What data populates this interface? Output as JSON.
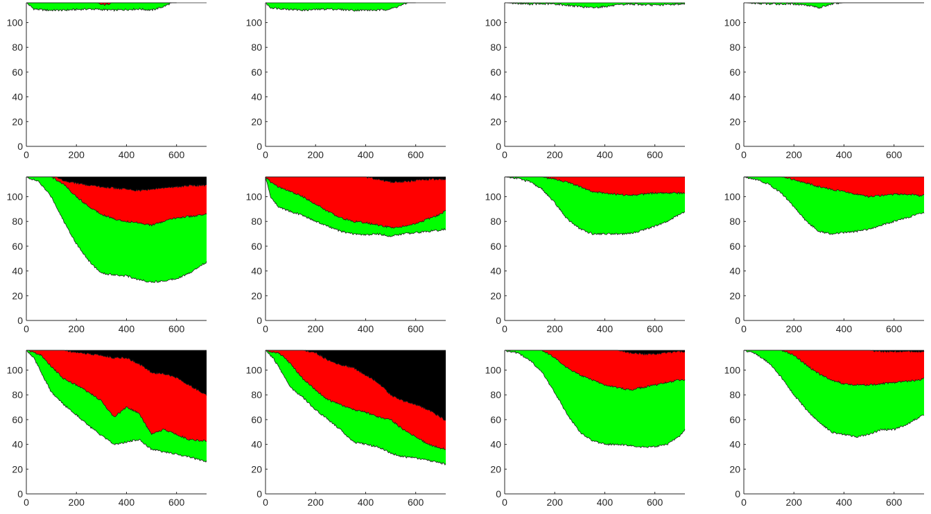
{
  "chart_data": [
    {
      "id": "r1c1",
      "type": "area",
      "xlim": [
        0,
        720
      ],
      "ylim": [
        0,
        116
      ],
      "x_ticks": [
        0,
        200,
        400,
        600
      ],
      "y_ticks": [
        0,
        20,
        40,
        60,
        80,
        100
      ],
      "series": [
        {
          "color": "#00ff00",
          "x": [
            0,
            30,
            80,
            150,
            250,
            350,
            450,
            500,
            550,
            580,
            600
          ],
          "lower": [
            116,
            111,
            110,
            110,
            111,
            110,
            111,
            110,
            113,
            116,
            116
          ]
        },
        {
          "color": "#ff0000",
          "x": [
            0,
            200,
            280,
            300,
            320,
            340,
            400,
            600
          ],
          "lower": [
            116,
            116,
            116,
            114.5,
            114.5,
            116,
            116,
            116
          ]
        }
      ]
    },
    {
      "id": "r1c2",
      "type": "area",
      "xlim": [
        0,
        720
      ],
      "ylim": [
        0,
        116
      ],
      "x_ticks": [
        0,
        200,
        400,
        600
      ],
      "y_ticks": [
        0,
        20,
        40,
        60,
        80,
        100
      ],
      "series": [
        {
          "color": "#00ff00",
          "x": [
            0,
            20,
            80,
            150,
            250,
            350,
            450,
            500,
            530,
            570,
            600
          ],
          "lower": [
            116,
            112,
            111,
            110,
            111,
            110,
            110,
            111,
            113,
            116,
            116
          ]
        }
      ]
    },
    {
      "id": "r1c3",
      "type": "area",
      "xlim": [
        0,
        720
      ],
      "ylim": [
        0,
        116
      ],
      "x_ticks": [
        0,
        200,
        400,
        600
      ],
      "y_ticks": [
        0,
        20,
        40,
        60,
        80,
        100
      ],
      "series": [
        {
          "color": "#00ff00",
          "x": [
            0,
            100,
            200,
            250,
            300,
            350,
            400,
            450,
            500,
            600,
            700,
            720
          ],
          "lower": [
            116,
            115,
            115,
            114,
            113,
            112,
            113,
            114,
            115,
            114,
            115,
            115
          ]
        }
      ]
    },
    {
      "id": "r1c4",
      "type": "area",
      "xlim": [
        0,
        720
      ],
      "ylim": [
        0,
        116
      ],
      "x_ticks": [
        0,
        200,
        400,
        600
      ],
      "y_ticks": [
        0,
        20,
        40,
        60,
        80,
        100
      ],
      "series": [
        {
          "color": "#00ff00",
          "x": [
            0,
            100,
            200,
            260,
            300,
            320,
            350,
            400,
            500,
            600,
            720
          ],
          "lower": [
            116,
            115,
            115,
            114,
            112,
            113,
            115,
            116,
            116,
            116,
            116
          ]
        }
      ]
    },
    {
      "id": "r2c1",
      "type": "area",
      "xlim": [
        0,
        720
      ],
      "ylim": [
        0,
        116
      ],
      "x_ticks": [
        0,
        200,
        400,
        600
      ],
      "y_ticks": [
        0,
        20,
        40,
        60,
        80,
        100
      ],
      "series": [
        {
          "color": "#00ff00",
          "x": [
            0,
            50,
            100,
            150,
            200,
            250,
            300,
            350,
            400,
            450,
            500,
            550,
            600,
            650,
            700,
            720
          ],
          "lower": [
            116,
            112,
            100,
            80,
            62,
            48,
            38,
            37,
            36,
            33,
            31,
            32,
            34,
            38,
            45,
            47
          ]
        },
        {
          "color": "#ff0000",
          "x": [
            0,
            100,
            150,
            200,
            250,
            300,
            350,
            400,
            450,
            500,
            550,
            600,
            650,
            700,
            720
          ],
          "lower": [
            116,
            116,
            110,
            100,
            92,
            86,
            82,
            80,
            79,
            77,
            80,
            83,
            84,
            85,
            86
          ]
        },
        {
          "color": "#000000",
          "x": [
            0,
            120,
            150,
            200,
            250,
            300,
            350,
            400,
            450,
            500,
            550,
            600,
            650,
            700,
            720
          ],
          "lower": [
            116,
            116,
            113,
            111,
            109,
            108,
            107,
            106,
            105,
            106,
            107,
            108,
            109,
            109,
            109
          ]
        }
      ]
    },
    {
      "id": "r2c2",
      "type": "area",
      "xlim": [
        0,
        720
      ],
      "ylim": [
        0,
        116
      ],
      "x_ticks": [
        0,
        200,
        400,
        600
      ],
      "y_ticks": [
        0,
        20,
        40,
        60,
        80,
        100
      ],
      "series": [
        {
          "color": "#00ff00",
          "x": [
            0,
            20,
            50,
            100,
            150,
            200,
            250,
            300,
            350,
            400,
            450,
            500,
            550,
            600,
            650,
            700,
            720
          ],
          "lower": [
            116,
            100,
            92,
            88,
            85,
            80,
            76,
            72,
            70,
            69,
            70,
            68,
            70,
            71,
            72,
            73,
            74
          ]
        },
        {
          "color": "#ff0000",
          "x": [
            0,
            20,
            50,
            100,
            150,
            200,
            250,
            300,
            350,
            400,
            450,
            500,
            550,
            600,
            650,
            700,
            720
          ],
          "lower": [
            116,
            112,
            108,
            104,
            100,
            94,
            88,
            83,
            80,
            79,
            77,
            75,
            76,
            78,
            82,
            86,
            89
          ]
        },
        {
          "color": "#000000",
          "x": [
            0,
            400,
            450,
            500,
            550,
            600,
            650,
            700,
            720
          ],
          "lower": [
            116,
            116,
            114,
            112,
            112,
            113,
            114,
            114,
            114
          ]
        }
      ]
    },
    {
      "id": "r2c3",
      "type": "area",
      "xlim": [
        0,
        720
      ],
      "ylim": [
        0,
        116
      ],
      "x_ticks": [
        0,
        200,
        400,
        600
      ],
      "y_ticks": [
        0,
        20,
        40,
        60,
        80,
        100
      ],
      "series": [
        {
          "color": "#00ff00",
          "x": [
            0,
            50,
            100,
            150,
            200,
            250,
            300,
            350,
            400,
            450,
            500,
            550,
            600,
            650,
            700,
            720
          ],
          "lower": [
            116,
            115,
            112,
            106,
            95,
            82,
            74,
            70,
            70,
            70,
            70,
            73,
            76,
            80,
            86,
            88
          ]
        },
        {
          "color": "#ff0000",
          "x": [
            0,
            150,
            200,
            250,
            300,
            350,
            400,
            450,
            500,
            550,
            600,
            650,
            700,
            720
          ],
          "lower": [
            116,
            116,
            114,
            112,
            108,
            104,
            103,
            102,
            101,
            102,
            103,
            103,
            103,
            103
          ]
        }
      ]
    },
    {
      "id": "r2c4",
      "type": "area",
      "xlim": [
        0,
        720
      ],
      "ylim": [
        0,
        116
      ],
      "x_ticks": [
        0,
        200,
        400,
        600
      ],
      "y_ticks": [
        0,
        20,
        40,
        60,
        80,
        100
      ],
      "series": [
        {
          "color": "#00ff00",
          "x": [
            0,
            50,
            100,
            150,
            200,
            250,
            300,
            350,
            400,
            450,
            500,
            550,
            600,
            650,
            700,
            720
          ],
          "lower": [
            116,
            114,
            110,
            103,
            92,
            80,
            72,
            70,
            71,
            72,
            74,
            77,
            80,
            83,
            86,
            87
          ]
        },
        {
          "color": "#ff0000",
          "x": [
            0,
            150,
            200,
            250,
            300,
            350,
            400,
            450,
            500,
            550,
            600,
            650,
            700,
            720
          ],
          "lower": [
            116,
            116,
            114,
            111,
            108,
            106,
            104,
            102,
            100,
            101,
            102,
            102,
            101,
            101
          ]
        }
      ]
    },
    {
      "id": "r3c1",
      "type": "area",
      "xlim": [
        0,
        720
      ],
      "ylim": [
        0,
        116
      ],
      "x_ticks": [
        0,
        200,
        400,
        600
      ],
      "y_ticks": [
        0,
        20,
        40,
        60,
        80,
        100
      ],
      "series": [
        {
          "color": "#00ff00",
          "x": [
            0,
            30,
            60,
            100,
            150,
            200,
            250,
            300,
            350,
            400,
            450,
            500,
            550,
            600,
            650,
            700,
            720
          ],
          "lower": [
            116,
            110,
            98,
            82,
            72,
            64,
            55,
            47,
            40,
            42,
            44,
            36,
            34,
            32,
            30,
            27,
            26
          ]
        },
        {
          "color": "#ff0000",
          "x": [
            0,
            60,
            100,
            150,
            200,
            250,
            300,
            350,
            400,
            450,
            500,
            550,
            600,
            650,
            700,
            720
          ],
          "lower": [
            116,
            112,
            103,
            93,
            88,
            82,
            75,
            62,
            70,
            65,
            48,
            52,
            48,
            44,
            43,
            43
          ]
        },
        {
          "color": "#000000",
          "x": [
            0,
            150,
            200,
            250,
            300,
            350,
            400,
            450,
            500,
            550,
            600,
            650,
            700,
            720
          ],
          "lower": [
            116,
            116,
            114,
            113,
            112,
            110,
            110,
            105,
            98,
            97,
            94,
            88,
            82,
            80
          ]
        }
      ]
    },
    {
      "id": "r3c2",
      "type": "area",
      "xlim": [
        0,
        720
      ],
      "ylim": [
        0,
        116
      ],
      "x_ticks": [
        0,
        200,
        400,
        600
      ],
      "y_ticks": [
        0,
        20,
        40,
        60,
        80,
        100
      ],
      "series": [
        {
          "color": "#00ff00",
          "x": [
            0,
            30,
            60,
            100,
            150,
            200,
            250,
            300,
            350,
            400,
            450,
            500,
            550,
            600,
            650,
            700,
            720
          ],
          "lower": [
            116,
            110,
            100,
            86,
            78,
            68,
            60,
            52,
            42,
            40,
            38,
            33,
            30,
            29,
            27,
            25,
            24
          ]
        },
        {
          "color": "#ff0000",
          "x": [
            0,
            60,
            100,
            150,
            200,
            250,
            300,
            350,
            400,
            450,
            500,
            550,
            600,
            650,
            700,
            720
          ],
          "lower": [
            116,
            113,
            105,
            93,
            84,
            76,
            72,
            68,
            66,
            62,
            60,
            52,
            46,
            40,
            37,
            36
          ]
        },
        {
          "color": "#000000",
          "x": [
            0,
            150,
            200,
            250,
            300,
            350,
            400,
            450,
            500,
            550,
            600,
            650,
            700,
            720
          ],
          "lower": [
            116,
            116,
            114,
            108,
            104,
            102,
            96,
            90,
            80,
            75,
            72,
            68,
            62,
            59
          ]
        }
      ]
    },
    {
      "id": "r3c3",
      "type": "area",
      "xlim": [
        0,
        720
      ],
      "ylim": [
        0,
        116
      ],
      "x_ticks": [
        0,
        200,
        400,
        600
      ],
      "y_ticks": [
        0,
        20,
        40,
        60,
        80,
        100
      ],
      "series": [
        {
          "color": "#00ff00",
          "x": [
            0,
            50,
            100,
            150,
            200,
            250,
            300,
            350,
            400,
            450,
            500,
            550,
            600,
            650,
            700,
            720
          ],
          "lower": [
            116,
            114,
            108,
            98,
            82,
            64,
            50,
            43,
            40,
            40,
            39,
            38,
            38,
            40,
            47,
            52
          ]
        },
        {
          "color": "#ff0000",
          "x": [
            0,
            150,
            200,
            250,
            300,
            350,
            400,
            450,
            500,
            550,
            600,
            650,
            700,
            720
          ],
          "lower": [
            116,
            116,
            110,
            102,
            96,
            92,
            88,
            86,
            84,
            86,
            88,
            90,
            92,
            92
          ]
        },
        {
          "color": "#000000",
          "x": [
            0,
            450,
            500,
            550,
            600,
            650,
            700,
            720
          ],
          "lower": [
            116,
            116,
            114,
            113,
            113,
            114,
            115,
            115
          ]
        }
      ]
    },
    {
      "id": "r3c4",
      "type": "area",
      "xlim": [
        0,
        720
      ],
      "ylim": [
        0,
        116
      ],
      "x_ticks": [
        0,
        200,
        400,
        600
      ],
      "y_ticks": [
        0,
        20,
        40,
        60,
        80,
        100
      ],
      "series": [
        {
          "color": "#00ff00",
          "x": [
            0,
            50,
            100,
            150,
            200,
            250,
            300,
            350,
            400,
            450,
            500,
            550,
            600,
            650,
            700,
            720
          ],
          "lower": [
            116,
            113,
            106,
            94,
            80,
            68,
            58,
            50,
            48,
            46,
            48,
            52,
            52,
            56,
            62,
            64
          ]
        },
        {
          "color": "#ff0000",
          "x": [
            0,
            150,
            200,
            250,
            300,
            350,
            400,
            450,
            500,
            550,
            600,
            650,
            700,
            720
          ],
          "lower": [
            116,
            116,
            112,
            104,
            97,
            92,
            89,
            88,
            88,
            89,
            90,
            91,
            92,
            93
          ]
        },
        {
          "color": "#000000",
          "x": [
            0,
            500,
            550,
            600,
            650,
            700,
            720
          ],
          "lower": [
            116,
            116,
            115,
            115,
            115,
            115,
            115
          ]
        }
      ]
    }
  ]
}
